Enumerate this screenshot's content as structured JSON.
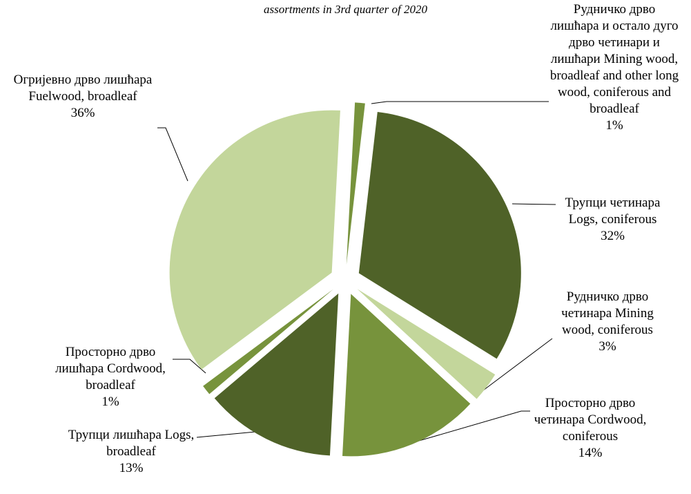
{
  "chart_data": {
    "type": "pie",
    "title": "assortments in 3rd quarter of 2020",
    "categories": [
      "Рудничко дрво лишћара и остало дуго дрво четинари и лишћари Mining wood, broadleaf and other long wood, coniferous and broadleaf",
      "Трупци четинара Logs, coniferous",
      "Рудничко дрво четинара Mining wood, coniferous",
      "Просторно дрво четинара Cordwood, coniferous",
      "Трупци лишћара Logs, broadleaf",
      "Просторно дрво лишћара Cordwood, broadleaf",
      "Огријевно дрво лишћара Fuelwood, broadleaf"
    ],
    "values": [
      1,
      32,
      3,
      14,
      13,
      1,
      36
    ],
    "value_labels": [
      "1%",
      "32%",
      "3%",
      "14%",
      "13%",
      "1%",
      "36%"
    ],
    "colors": [
      "#77933c",
      "#4f6228",
      "#c3d69b",
      "#77933c",
      "#4f6228",
      "#77933c",
      "#c3d69b"
    ]
  }
}
